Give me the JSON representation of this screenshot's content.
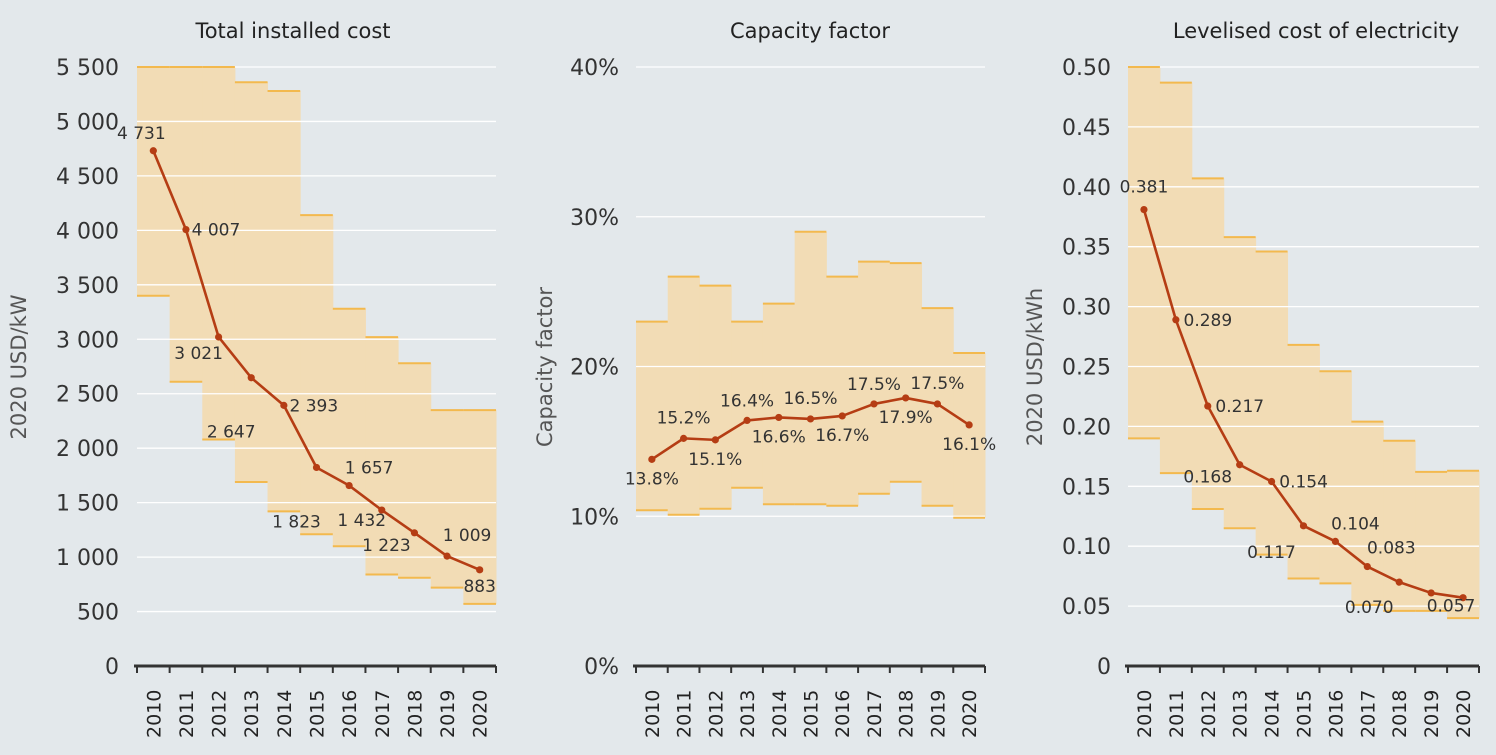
{
  "colors": {
    "background": "#e3e8eb",
    "range_fill": "#f2dcb5",
    "range_edge": "#f3b94e",
    "line": "#b53d14",
    "grid": "#ffffff"
  },
  "chart_data": [
    {
      "type": "line",
      "title": "Total installed cost",
      "ylabel": "2020 USD/kW",
      "xlabel": "",
      "x": [
        "2010",
        "2011",
        "2012",
        "2013",
        "2014",
        "2015",
        "2016",
        "2017",
        "2018",
        "2019",
        "2020"
      ],
      "values": [
        4731,
        4007,
        3021,
        2647,
        2393,
        1823,
        1657,
        1432,
        1223,
        1009,
        883
      ],
      "value_labels": [
        "4 731",
        "4 007",
        "3 021",
        "2 647",
        "2 393",
        "1 823",
        "1 657",
        "1 432",
        "1 223",
        "1 009",
        "883"
      ],
      "range_high": [
        5500,
        5500,
        5500,
        5360,
        5280,
        4140,
        3280,
        3020,
        2780,
        2350,
        2350
      ],
      "range_low": [
        3400,
        2610,
        2080,
        1690,
        1420,
        1210,
        1100,
        840,
        810,
        720,
        570
      ],
      "ylim": [
        0,
        5500
      ],
      "yticks": [
        0,
        500,
        1000,
        1500,
        2000,
        2500,
        3000,
        3500,
        4000,
        4500,
        5000,
        5500
      ],
      "ytick_labels": [
        "0",
        "500",
        "1 000",
        "1 500",
        "2 000",
        "2 500",
        "3 000",
        "3 500",
        "4 000",
        "4 500",
        "5 000",
        "5 500"
      ],
      "grid": true
    },
    {
      "type": "line",
      "title": "Capacity factor",
      "ylabel": "Capacity factor",
      "xlabel": "",
      "x": [
        "2010",
        "2011",
        "2012",
        "2013",
        "2014",
        "2015",
        "2016",
        "2017",
        "2018",
        "2019",
        "2020"
      ],
      "values": [
        13.8,
        15.2,
        15.1,
        16.4,
        16.6,
        16.5,
        16.7,
        17.5,
        17.9,
        17.5,
        16.1
      ],
      "value_labels": [
        "13.8%",
        "15.2%",
        "15.1%",
        "16.4%",
        "16.6%",
        "16.5%",
        "16.7%",
        "17.5%",
        "17.9%",
        "17.5%",
        "16.1%"
      ],
      "range_high": [
        23.0,
        26.0,
        25.4,
        23.0,
        24.2,
        29.0,
        26.0,
        27.0,
        26.9,
        23.9,
        20.9
      ],
      "range_low": [
        10.4,
        10.1,
        10.5,
        11.9,
        10.8,
        10.8,
        10.7,
        11.5,
        12.3,
        10.7,
        9.9
      ],
      "ylim": [
        0,
        40
      ],
      "yticks": [
        0,
        10,
        20,
        30,
        40
      ],
      "ytick_labels": [
        "0%",
        "10%",
        "20%",
        "30%",
        "40%"
      ],
      "grid": true
    },
    {
      "type": "line",
      "title": "Levelised cost of electricity",
      "ylabel": "2020 USD/kWh",
      "xlabel": "",
      "x": [
        "2010",
        "2011",
        "2012",
        "2013",
        "2014",
        "2015",
        "2016",
        "2017",
        "2018",
        "2019",
        "2020"
      ],
      "values": [
        0.381,
        0.289,
        0.217,
        0.168,
        0.154,
        0.117,
        0.104,
        0.083,
        0.07,
        0.061,
        0.057
      ],
      "value_labels": [
        "0.381",
        "0.289",
        "0.217",
        "0.168",
        "0.154",
        "0.117",
        "0.104",
        "0.083",
        "0.070",
        "",
        "0.057"
      ],
      "range_high": [
        0.5,
        0.487,
        0.407,
        0.358,
        0.346,
        0.268,
        0.246,
        0.204,
        0.188,
        0.162,
        0.163
      ],
      "range_low": [
        0.19,
        0.161,
        0.131,
        0.115,
        0.093,
        0.073,
        0.069,
        0.051,
        0.046,
        0.046,
        0.04
      ],
      "ylim": [
        0,
        0.5
      ],
      "yticks": [
        0,
        0.05,
        0.1,
        0.15,
        0.2,
        0.25,
        0.3,
        0.35,
        0.4,
        0.45,
        0.5
      ],
      "ytick_labels": [
        "0",
        "0.05",
        "0.10",
        "0.15",
        "0.20",
        "0.25",
        "0.30",
        "0.35",
        "0.40",
        "0.45",
        "0.50"
      ],
      "grid": true
    }
  ]
}
